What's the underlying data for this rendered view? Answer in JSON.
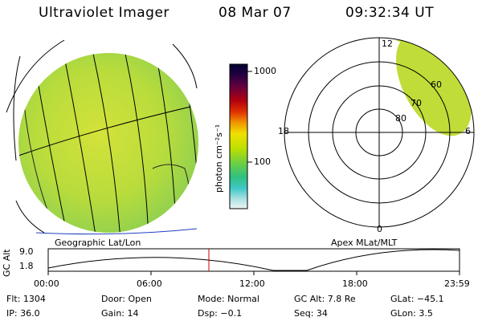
{
  "header": {
    "instrument": "Ultraviolet Imager",
    "date": "08 Mar 07",
    "time": "09:32:34 UT"
  },
  "colorbar": {
    "ticks": [
      "1000",
      "100"
    ],
    "unit_label": "photon cm⁻²s⁻¹",
    "colors": [
      "#000030",
      "#200040",
      "#500040",
      "#800010",
      "#c00000",
      "#e06000",
      "#f0a000",
      "#f0e000",
      "#c0e000",
      "#80d040",
      "#40c070",
      "#30c0c0",
      "#a0e0e0",
      "#e0f0f0"
    ]
  },
  "geographic_panel": {
    "label": "Geographic Lat/Lon",
    "image_color": "#c8e030"
  },
  "polar_panel": {
    "label": "Apex MLat/MLT",
    "mlt_labels": {
      "top": "12",
      "left": "18",
      "right": "6",
      "bottom": "0"
    },
    "lat_labels": [
      "60",
      "70",
      "80"
    ]
  },
  "altitude_plot": {
    "ylabel": "GC Alt",
    "y_ticks": [
      "9.0",
      "1.8"
    ],
    "x_ticks": [
      "00:00",
      "06:00",
      "12:00",
      "18:00",
      "23:59"
    ],
    "current_time_marker_color": "#cc0000"
  },
  "info": {
    "flt": "Flt:  1304",
    "ip": "IP:  36.0",
    "door": "Door:  Open",
    "gain": "Gain:  14",
    "mode": "Mode:  Normal",
    "dsp": "Dsp:    −0.1",
    "gcalt": "GC Alt:  7.8 Re",
    "seq": "Seq:  34",
    "glat": "GLat:   −45.1",
    "glon": "GLon:     3.5"
  }
}
